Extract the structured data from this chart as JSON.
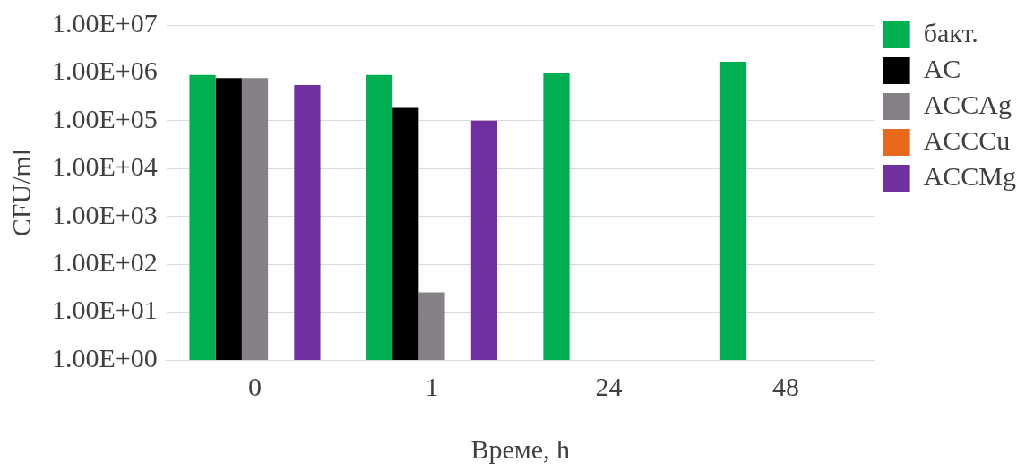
{
  "chart_data": {
    "type": "bar",
    "xlabel": "Време, h",
    "ylabel": "CFU/ml",
    "categories": [
      "0",
      "1",
      "24",
      "48"
    ],
    "series": [
      {
        "name": "бакт.",
        "color": "#00b050",
        "values": [
          900000,
          900000,
          1000000,
          1700000
        ]
      },
      {
        "name": "AC",
        "color": "#000000",
        "values": [
          780000,
          185000,
          null,
          null
        ]
      },
      {
        "name": "ACCAg",
        "color": "#857f86",
        "values": [
          780000,
          26,
          null,
          null
        ]
      },
      {
        "name": "ACCCu",
        "color": "#e8681c",
        "values": [
          null,
          null,
          null,
          null
        ]
      },
      {
        "name": "ACCMg",
        "color": "#7030a0",
        "values": [
          560000,
          100000,
          null,
          null
        ]
      }
    ],
    "log": "y",
    "ylim": [
      1,
      10000000
    ],
    "yticks": [
      {
        "value": 1,
        "label": "1.00E+00"
      },
      {
        "value": 10,
        "label": "1.00E+01"
      },
      {
        "value": 100,
        "label": "1.00E+02"
      },
      {
        "value": 1000,
        "label": "1.00E+03"
      },
      {
        "value": 10000,
        "label": "1.00E+04"
      },
      {
        "value": 100000,
        "label": "1.00E+05"
      },
      {
        "value": 1000000,
        "label": "1.00E+06"
      },
      {
        "value": 10000000,
        "label": "1.00E+07"
      }
    ],
    "grid": "y",
    "legend": "right"
  }
}
